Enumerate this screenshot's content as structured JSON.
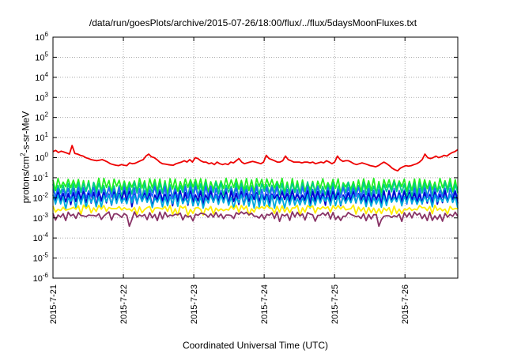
{
  "chart_data": {
    "type": "line",
    "title": "/data/run/goesPlots/archive/2015-07-26/18:00/flux/../flux/5daysMoonFluxes.txt",
    "xlabel": "Coordinated Universal Time (UTC)",
    "ylabel": {
      "base": "protons/cm",
      "exponent": "2",
      "rest": "-s-sr-MeV"
    },
    "yscale": "log",
    "ylim": [
      1e-06,
      1000000.0
    ],
    "xlim": [
      "2015-07-21 00:00",
      "2015-07-26 18:00"
    ],
    "grid": true,
    "x_ticks": [
      "2015-7-21",
      "2015-7-22",
      "2015-7-23",
      "2015-7-24",
      "2015-7-25",
      "2015-7-26"
    ],
    "y_ticks": [
      {
        "base": "10",
        "exp": "-6"
      },
      {
        "base": "10",
        "exp": "-5"
      },
      {
        "base": "10",
        "exp": "-4"
      },
      {
        "base": "10",
        "exp": "-3"
      },
      {
        "base": "10",
        "exp": "-2"
      },
      {
        "base": "10",
        "exp": "-1"
      },
      {
        "base": "10",
        "exp": "0"
      },
      {
        "base": "10",
        "exp": "1"
      },
      {
        "base": "10",
        "exp": "2"
      },
      {
        "base": "10",
        "exp": "3"
      },
      {
        "base": "10",
        "exp": "4"
      },
      {
        "base": "10",
        "exp": "5"
      },
      {
        "base": "10",
        "exp": "6"
      }
    ],
    "series": [
      {
        "color": "#ee0000",
        "values": [
          2.0,
          2.3,
          1.8,
          2.1,
          1.9,
          1.7,
          1.5,
          4.0,
          1.6,
          1.5,
          1.3,
          1.2,
          1.0,
          0.9,
          0.8,
          0.75,
          0.7,
          0.75,
          0.8,
          0.7,
          0.6,
          0.5,
          0.45,
          0.42,
          0.4,
          0.45,
          0.42,
          0.4,
          0.55,
          0.5,
          0.52,
          0.6,
          0.7,
          0.8,
          1.2,
          1.5,
          1.1,
          1.0,
          0.8,
          0.6,
          0.5,
          0.48,
          0.45,
          0.43,
          0.42,
          0.5,
          0.55,
          0.6,
          0.7,
          0.6,
          0.8,
          0.6,
          1.0,
          0.9,
          0.7,
          0.6,
          0.6,
          0.5,
          0.55,
          0.45,
          0.6,
          0.5,
          0.45,
          0.5,
          0.45,
          0.6,
          0.55,
          0.7,
          0.9,
          0.6,
          0.5,
          0.55,
          0.6,
          0.65,
          0.6,
          0.55,
          0.5,
          0.6,
          1.3,
          0.9,
          0.8,
          0.7,
          0.6,
          0.6,
          0.7,
          1.2,
          0.8,
          0.7,
          0.6,
          0.6,
          0.6,
          0.55,
          0.6,
          0.6,
          0.55,
          0.6,
          0.5,
          0.55,
          0.6,
          0.55,
          0.7,
          0.6,
          0.5,
          0.6,
          1.2,
          0.8,
          0.65,
          0.7,
          0.7,
          0.6,
          0.5,
          0.45,
          0.5,
          0.55,
          0.5,
          0.45,
          0.4,
          0.38,
          0.35,
          0.4,
          0.5,
          0.6,
          0.5,
          0.4,
          0.3,
          0.25,
          0.22,
          0.3,
          0.35,
          0.4,
          0.38,
          0.4,
          0.45,
          0.5,
          0.6,
          0.8,
          1.5,
          1.0,
          0.9,
          1.0,
          1.2,
          1.0,
          1.1,
          1.3,
          1.2,
          1.5,
          1.8,
          2.0,
          2.5
        ]
      },
      {
        "color": "#22ee22",
        "amp": 0.075,
        "low": 0.025,
        "seed": 1
      },
      {
        "color": "#00cc88",
        "amp": 0.05,
        "low": 0.014,
        "seed": 2
      },
      {
        "color": "#2266ff",
        "amp": 0.03,
        "low": 0.008,
        "seed": 3
      },
      {
        "color": "#0000cc",
        "amp": 0.018,
        "low": 0.006,
        "seed": 4
      },
      {
        "color": "#00aadd",
        "amp": 0.012,
        "low": 0.0045,
        "seed": 5
      },
      {
        "color": "#ffee00",
        "amp": 0.0035,
        "low": 0.0022,
        "seed": 6
      },
      {
        "color": "#883366",
        "amp": 0.0016,
        "low": 0.0011,
        "seed": 7
      }
    ]
  }
}
